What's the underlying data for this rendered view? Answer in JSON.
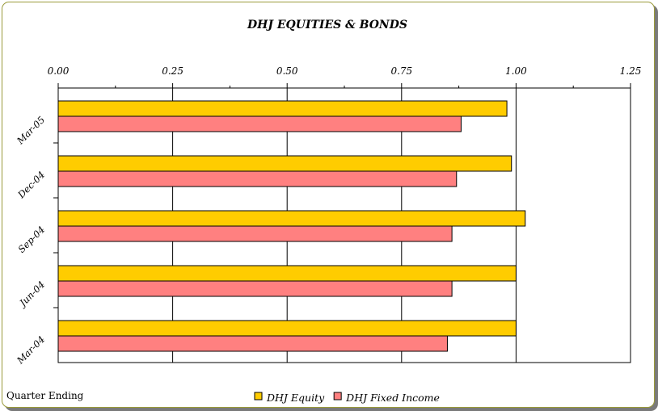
{
  "chart_data": {
    "type": "bar",
    "orientation": "horizontal",
    "title": "DHJ EQUITIES & BONDS",
    "xlabel": "",
    "ylabel": "",
    "footnote": "Quarter Ending",
    "xlim": [
      0,
      1.25
    ],
    "xticks": [
      "0.00",
      "0.25",
      "0.50",
      "0.75",
      "1.00",
      "1.25"
    ],
    "xtick_values": [
      0,
      0.25,
      0.5,
      0.75,
      1.0,
      1.25
    ],
    "categories": [
      "Mar-05",
      "Dec-04",
      "Sep-04",
      "Jun-04",
      "Mar-04"
    ],
    "series": [
      {
        "name": "DHJ Equity",
        "color": "#FFCC00",
        "values": [
          0.98,
          0.99,
          1.02,
          1.0,
          1.0
        ]
      },
      {
        "name": "DHJ Fixed Income",
        "color": "#FF8080",
        "values": [
          0.88,
          0.87,
          0.86,
          0.86,
          0.85
        ]
      }
    ],
    "grid": true,
    "legend_position": "bottom-center"
  }
}
